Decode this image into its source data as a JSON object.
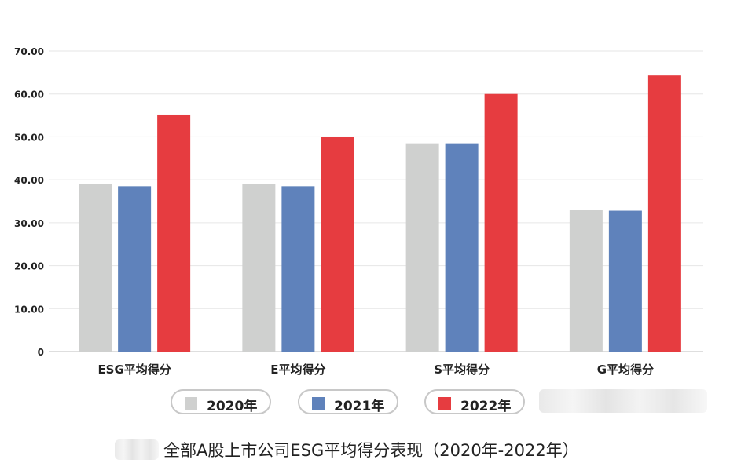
{
  "chart_data": {
    "type": "bar",
    "categories": [
      "ESG平均得分",
      "E平均得分",
      "S平均得分",
      "G平均得分"
    ],
    "series": [
      {
        "name": "2020年",
        "color": "#cfd0cf",
        "values": [
          39.0,
          39.0,
          48.5,
          33.0
        ]
      },
      {
        "name": "2021年",
        "color": "#5f82bb",
        "values": [
          38.5,
          38.5,
          48.5,
          32.8
        ]
      },
      {
        "name": "2022年",
        "color": "#e63c40",
        "values": [
          55.2,
          50.0,
          60.0,
          64.3
        ]
      }
    ],
    "y_ticks": [
      "70.00",
      "60.00",
      "50.00",
      "40.00",
      "30.00",
      "20.00",
      "10.00",
      "0"
    ],
    "ylim": [
      0,
      70
    ],
    "grid": true,
    "legend_position": "bottom"
  },
  "caption": "全部A股上市公司ESG平均得分表现（2020年-2022年）"
}
